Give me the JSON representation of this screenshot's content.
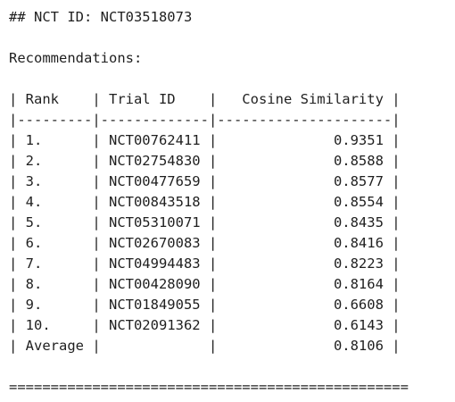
{
  "heading": "## NCT ID: NCT03518073",
  "recommendations_label": "Recommendations:",
  "table": {
    "header_line": "| Rank    | Trial ID    |   Cosine Similarity |",
    "separator_line": "|---------|-------------|---------------------|",
    "rows": [
      "| 1.      | NCT00762411 |              0.9351 |",
      "| 2.      | NCT02754830 |              0.8588 |",
      "| 3.      | NCT00477659 |              0.8577 |",
      "| 4.      | NCT00843518 |              0.8554 |",
      "| 5.      | NCT05310071 |              0.8435 |",
      "| 6.      | NCT02670083 |              0.8416 |",
      "| 7.      | NCT04994483 |              0.8223 |",
      "| 8.      | NCT00428090 |              0.8164 |",
      "| 9.      | NCT01849055 |              0.6608 |",
      "| 10.     | NCT02091362 |              0.6143 |",
      "| Average |             |              0.8106 |"
    ]
  },
  "footer_rule": "================================================"
}
